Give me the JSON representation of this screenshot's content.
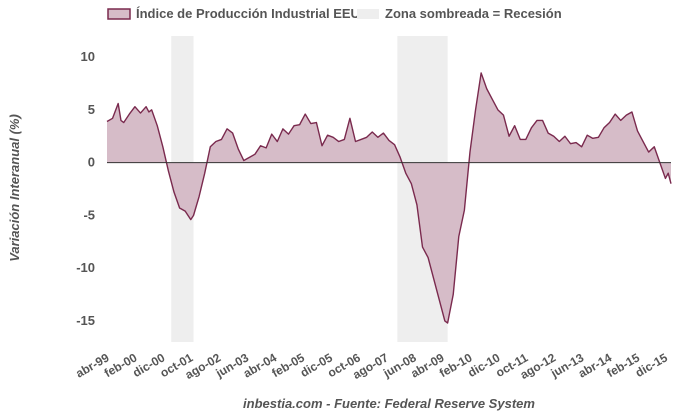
{
  "chart_data": {
    "type": "area",
    "ylabel": "Variación Interanual (%)",
    "xlabel": "",
    "source_note": "inbestia.com - Fuente: Federal Reserve System",
    "legend": {
      "placement": "top-left",
      "series_label": "Índice de Producción Industrial EEUU",
      "recession_label": "Zona sombreada = Recesión"
    },
    "x_range": [
      "1999-04",
      "2016-02"
    ],
    "ylim": [
      -17,
      12
    ],
    "yticks": [
      10,
      5,
      0,
      -5,
      -10,
      -15
    ],
    "ytick_labels": [
      "10",
      "5",
      "0",
      "-5",
      "-10",
      "-15"
    ],
    "grid": false,
    "xticks": [
      "1999-04",
      "2000-02",
      "2000-12",
      "2001-10",
      "2002-08",
      "2003-06",
      "2004-04",
      "2005-02",
      "2005-12",
      "2006-10",
      "2007-08",
      "2008-06",
      "2009-04",
      "2010-02",
      "2010-12",
      "2011-10",
      "2012-08",
      "2013-06",
      "2014-04",
      "2015-02",
      "2015-12"
    ],
    "xtick_labels": [
      "abr-99",
      "feb-00",
      "dic-00",
      "oct-01",
      "ago-02",
      "jun-03",
      "abr-04",
      "feb-05",
      "dic-05",
      "oct-06",
      "ago-07",
      "jun-08",
      "abr-09",
      "feb-10",
      "dic-10",
      "oct-11",
      "ago-12",
      "jun-13",
      "abr-14",
      "feb-15",
      "dic-15"
    ],
    "recessions": [
      [
        "2001-03",
        "2001-11"
      ],
      [
        "2007-12",
        "2009-06"
      ]
    ],
    "colors": {
      "line": "#7a2a4e",
      "fill": "#d6bcc8",
      "recession": "#eeeeee",
      "zero_line": "#333333"
    },
    "series": [
      {
        "x": [
          "1999-04",
          "1999-06",
          "1999-08",
          "1999-09",
          "1999-10",
          "1999-12",
          "2000-02",
          "2000-04",
          "2000-06",
          "2000-07",
          "2000-08",
          "2000-10",
          "2000-12",
          "2001-02",
          "2001-04",
          "2001-06",
          "2001-08",
          "2001-10",
          "2001-11",
          "2002-01",
          "2002-03",
          "2002-05",
          "2002-07",
          "2002-09",
          "2002-11",
          "2003-01",
          "2003-03",
          "2003-05",
          "2003-07",
          "2003-09",
          "2003-11",
          "2004-01",
          "2004-03",
          "2004-05",
          "2004-07",
          "2004-09",
          "2004-11",
          "2005-01",
          "2005-03",
          "2005-05",
          "2005-07",
          "2005-09",
          "2005-11",
          "2006-01",
          "2006-03",
          "2006-05",
          "2006-07",
          "2006-09",
          "2006-11",
          "2007-01",
          "2007-03",
          "2007-05",
          "2007-07",
          "2007-09",
          "2007-11",
          "2008-01",
          "2008-03",
          "2008-05",
          "2008-07",
          "2008-09",
          "2008-11",
          "2009-01",
          "2009-03",
          "2009-05",
          "2009-06",
          "2009-08",
          "2009-10",
          "2009-12",
          "2010-02",
          "2010-04",
          "2010-06",
          "2010-08",
          "2010-10",
          "2010-12",
          "2011-02",
          "2011-04",
          "2011-06",
          "2011-08",
          "2011-10",
          "2011-12",
          "2012-02",
          "2012-04",
          "2012-06",
          "2012-08",
          "2012-10",
          "2012-12",
          "2013-02",
          "2013-04",
          "2013-06",
          "2013-08",
          "2013-10",
          "2013-12",
          "2014-02",
          "2014-04",
          "2014-06",
          "2014-08",
          "2014-10",
          "2014-12",
          "2015-02",
          "2015-04",
          "2015-06",
          "2015-08",
          "2015-10",
          "2015-12",
          "2016-01",
          "2016-02"
        ],
        "values": [
          3.9,
          4.2,
          5.6,
          4.0,
          3.8,
          4.6,
          5.3,
          4.7,
          5.3,
          4.8,
          5.0,
          3.5,
          1.5,
          -0.8,
          -2.8,
          -4.3,
          -4.6,
          -5.4,
          -5.0,
          -3.2,
          -1.0,
          1.5,
          2.0,
          2.2,
          3.2,
          2.8,
          1.3,
          0.2,
          0.5,
          0.8,
          1.6,
          1.4,
          2.7,
          2.0,
          3.2,
          2.7,
          3.5,
          3.6,
          4.6,
          3.7,
          3.8,
          1.6,
          2.6,
          2.4,
          2.0,
          2.2,
          4.2,
          2.0,
          2.2,
          2.4,
          2.9,
          2.4,
          2.8,
          2.1,
          1.7,
          0.5,
          -1.0,
          -2.0,
          -4.0,
          -8.0,
          -9.0,
          -11.0,
          -13.0,
          -15.0,
          -15.2,
          -12.5,
          -7.0,
          -4.5,
          1.0,
          5.0,
          8.5,
          7.0,
          6.0,
          5.0,
          4.5,
          2.5,
          3.5,
          2.2,
          2.2,
          3.3,
          4.0,
          4.0,
          2.8,
          2.5,
          2.0,
          2.5,
          1.8,
          1.9,
          1.5,
          2.6,
          2.3,
          2.4,
          3.3,
          3.8,
          4.6,
          4.0,
          4.5,
          4.8,
          3.0,
          2.0,
          1.0,
          1.5,
          0.0,
          -1.5,
          -1.0,
          -2.0
        ]
      }
    ]
  }
}
